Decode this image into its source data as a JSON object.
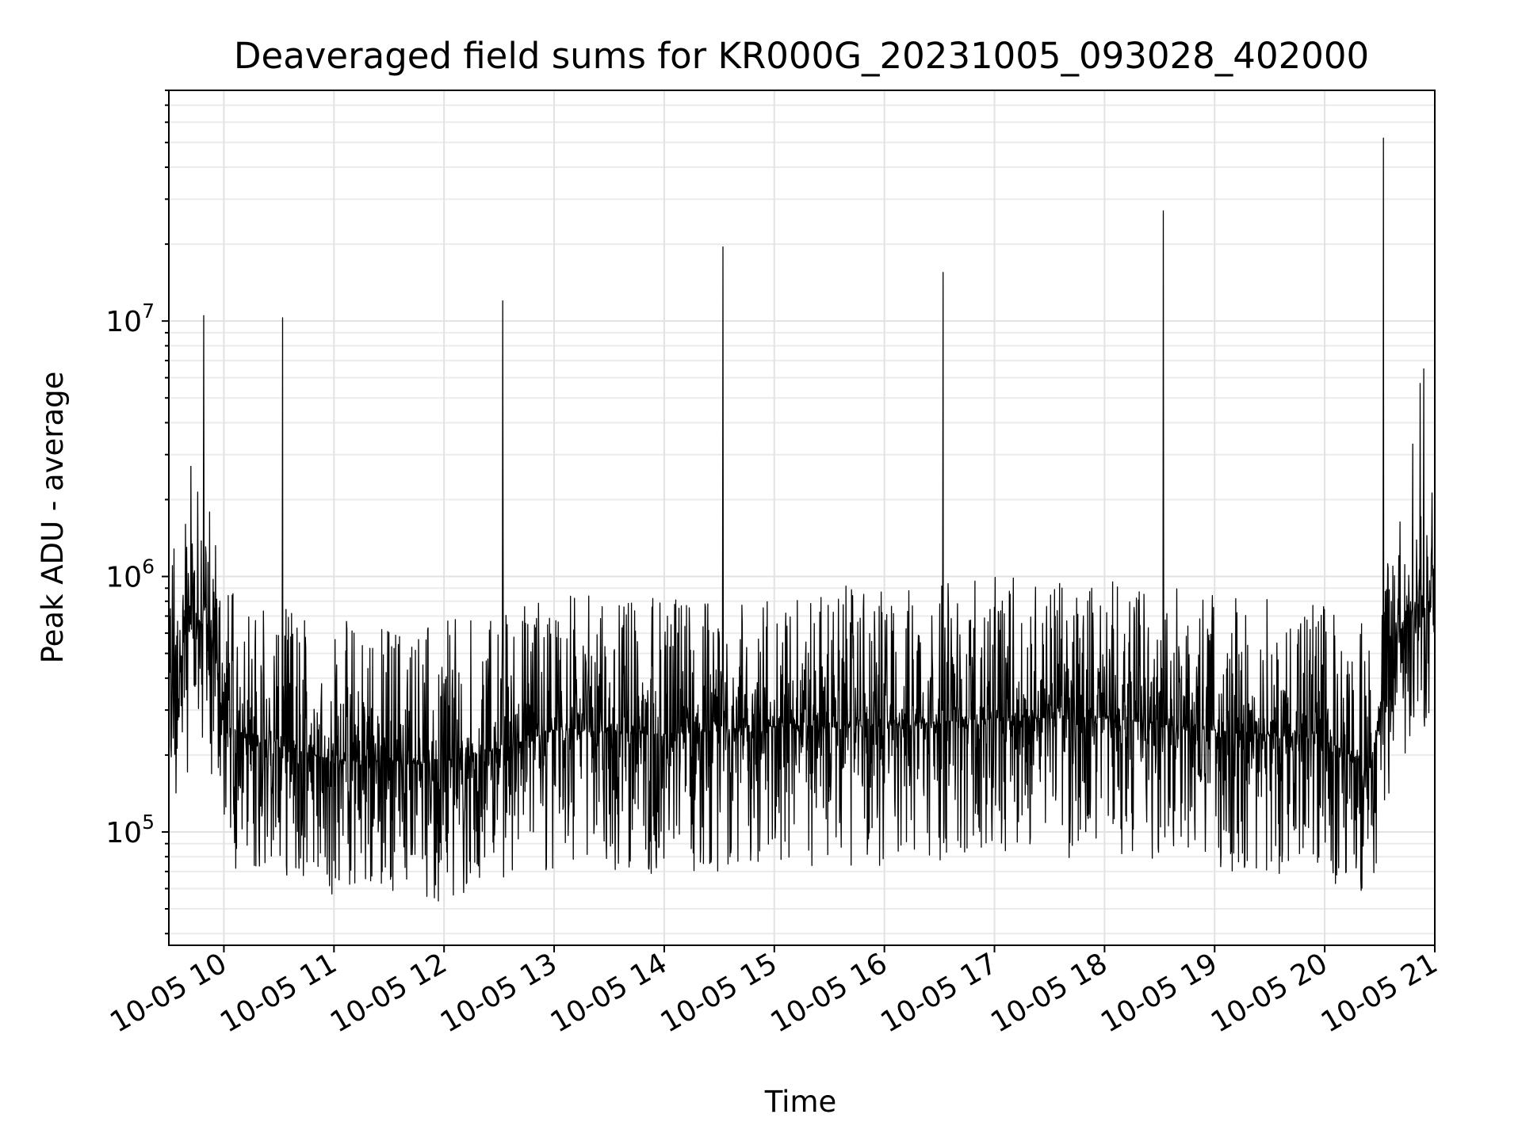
{
  "chart_data": {
    "type": "line",
    "title": "Deaveraged field sums for KR000G_20231005_093028_402000",
    "xlabel": "Time",
    "ylabel": "Peak ADU - average",
    "x_range": [
      "2023-10-05 09:30",
      "2023-10-05 21:00"
    ],
    "xlim": [
      "2023-10-05 09:30",
      "2023-10-05 21:00"
    ],
    "ylim": [
      36000,
      80000000
    ],
    "yscale": "log",
    "grid": true,
    "line_color": "#000000",
    "xticks": [
      {
        "t": "2023-10-05 10:00",
        "label": "10-05 10"
      },
      {
        "t": "2023-10-05 11:00",
        "label": "10-05 11"
      },
      {
        "t": "2023-10-05 12:00",
        "label": "10-05 12"
      },
      {
        "t": "2023-10-05 13:00",
        "label": "10-05 13"
      },
      {
        "t": "2023-10-05 14:00",
        "label": "10-05 14"
      },
      {
        "t": "2023-10-05 15:00",
        "label": "10-05 15"
      },
      {
        "t": "2023-10-05 16:00",
        "label": "10-05 16"
      },
      {
        "t": "2023-10-05 17:00",
        "label": "10-05 17"
      },
      {
        "t": "2023-10-05 18:00",
        "label": "10-05 18"
      },
      {
        "t": "2023-10-05 19:00",
        "label": "10-05 19"
      },
      {
        "t": "2023-10-05 20:00",
        "label": "10-05 20"
      },
      {
        "t": "2023-10-05 21:00",
        "label": "10-05 21"
      }
    ],
    "yticks": [
      {
        "value": 100000,
        "base": "10",
        "exp": "5"
      },
      {
        "value": 1000000,
        "base": "10",
        "exp": "6"
      },
      {
        "value": 10000000,
        "base": "10",
        "exp": "7"
      }
    ],
    "baseline": [
      [
        "2023-10-05 09:30",
        400000
      ],
      [
        "2023-10-05 09:40",
        600000
      ],
      [
        "2023-10-05 09:50",
        700000
      ],
      [
        "2023-10-05 09:55",
        500000
      ],
      [
        "2023-10-05 10:00",
        260000
      ],
      [
        "2023-10-05 10:30",
        220000
      ],
      [
        "2023-10-05 11:00",
        190000
      ],
      [
        "2023-10-05 12:00",
        190000
      ],
      [
        "2023-10-05 12:30",
        210000
      ],
      [
        "2023-10-05 13:00",
        250000
      ],
      [
        "2023-10-05 14:00",
        240000
      ],
      [
        "2023-10-05 15:00",
        260000
      ],
      [
        "2023-10-05 16:00",
        260000
      ],
      [
        "2023-10-05 17:00",
        280000
      ],
      [
        "2023-10-05 18:00",
        280000
      ],
      [
        "2023-10-05 19:00",
        250000
      ],
      [
        "2023-10-05 20:00",
        230000
      ],
      [
        "2023-10-05 20:25",
        180000
      ],
      [
        "2023-10-05 20:35",
        400000
      ],
      [
        "2023-10-05 20:45",
        750000
      ],
      [
        "2023-10-05 21:00",
        750000
      ]
    ],
    "spikes": [
      [
        "2023-10-05 09:42",
        2700000
      ],
      [
        "2023-10-05 09:49",
        10500000
      ],
      [
        "2023-10-05 10:32",
        10300000
      ],
      [
        "2023-10-05 12:32",
        12000000
      ],
      [
        "2023-10-05 14:32",
        19500000
      ],
      [
        "2023-10-05 16:32",
        15500000
      ],
      [
        "2023-10-05 18:32",
        27000000
      ],
      [
        "2023-10-05 20:32",
        52000000
      ],
      [
        "2023-10-05 20:48",
        3300000
      ],
      [
        "2023-10-05 20:52",
        5700000
      ],
      [
        "2023-10-05 20:54",
        6500000
      ]
    ]
  }
}
